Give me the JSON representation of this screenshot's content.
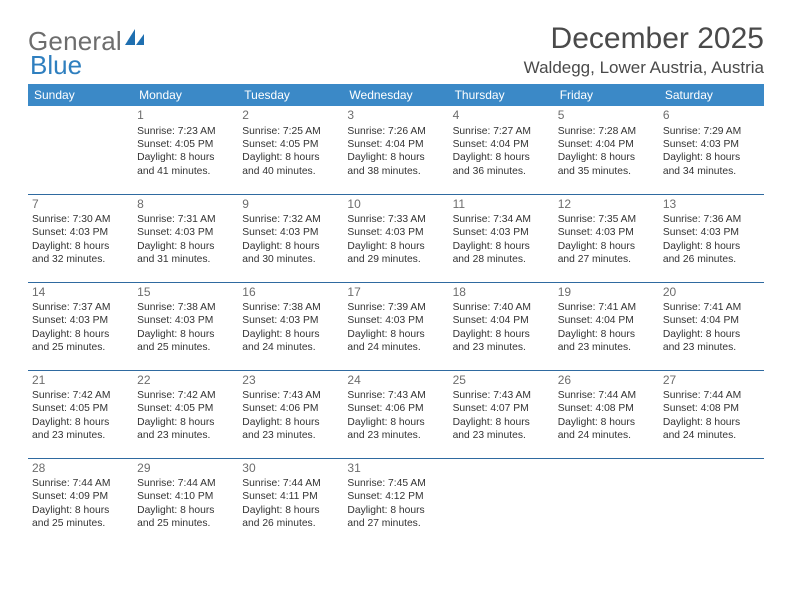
{
  "logo": {
    "word1": "General",
    "word2": "Blue"
  },
  "title": "December 2025",
  "location": "Waldegg, Lower Austria, Austria",
  "colors": {
    "header_bg": "#3b89c7",
    "header_text": "#ffffff",
    "row_border": "#2f6aa0",
    "text": "#333333",
    "muted": "#6d6d6d",
    "logo_gray": "#6d6d6d",
    "logo_blue": "#2f7fbf",
    "page_bg": "#ffffff"
  },
  "day_headers": [
    "Sunday",
    "Monday",
    "Tuesday",
    "Wednesday",
    "Thursday",
    "Friday",
    "Saturday"
  ],
  "weeks": [
    [
      null,
      {
        "n": "1",
        "sr": "Sunrise: 7:23 AM",
        "ss": "Sunset: 4:05 PM",
        "dl": "Daylight: 8 hours and 41 minutes."
      },
      {
        "n": "2",
        "sr": "Sunrise: 7:25 AM",
        "ss": "Sunset: 4:05 PM",
        "dl": "Daylight: 8 hours and 40 minutes."
      },
      {
        "n": "3",
        "sr": "Sunrise: 7:26 AM",
        "ss": "Sunset: 4:04 PM",
        "dl": "Daylight: 8 hours and 38 minutes."
      },
      {
        "n": "4",
        "sr": "Sunrise: 7:27 AM",
        "ss": "Sunset: 4:04 PM",
        "dl": "Daylight: 8 hours and 36 minutes."
      },
      {
        "n": "5",
        "sr": "Sunrise: 7:28 AM",
        "ss": "Sunset: 4:04 PM",
        "dl": "Daylight: 8 hours and 35 minutes."
      },
      {
        "n": "6",
        "sr": "Sunrise: 7:29 AM",
        "ss": "Sunset: 4:03 PM",
        "dl": "Daylight: 8 hours and 34 minutes."
      }
    ],
    [
      {
        "n": "7",
        "sr": "Sunrise: 7:30 AM",
        "ss": "Sunset: 4:03 PM",
        "dl": "Daylight: 8 hours and 32 minutes."
      },
      {
        "n": "8",
        "sr": "Sunrise: 7:31 AM",
        "ss": "Sunset: 4:03 PM",
        "dl": "Daylight: 8 hours and 31 minutes."
      },
      {
        "n": "9",
        "sr": "Sunrise: 7:32 AM",
        "ss": "Sunset: 4:03 PM",
        "dl": "Daylight: 8 hours and 30 minutes."
      },
      {
        "n": "10",
        "sr": "Sunrise: 7:33 AM",
        "ss": "Sunset: 4:03 PM",
        "dl": "Daylight: 8 hours and 29 minutes."
      },
      {
        "n": "11",
        "sr": "Sunrise: 7:34 AM",
        "ss": "Sunset: 4:03 PM",
        "dl": "Daylight: 8 hours and 28 minutes."
      },
      {
        "n": "12",
        "sr": "Sunrise: 7:35 AM",
        "ss": "Sunset: 4:03 PM",
        "dl": "Daylight: 8 hours and 27 minutes."
      },
      {
        "n": "13",
        "sr": "Sunrise: 7:36 AM",
        "ss": "Sunset: 4:03 PM",
        "dl": "Daylight: 8 hours and 26 minutes."
      }
    ],
    [
      {
        "n": "14",
        "sr": "Sunrise: 7:37 AM",
        "ss": "Sunset: 4:03 PM",
        "dl": "Daylight: 8 hours and 25 minutes."
      },
      {
        "n": "15",
        "sr": "Sunrise: 7:38 AM",
        "ss": "Sunset: 4:03 PM",
        "dl": "Daylight: 8 hours and 25 minutes."
      },
      {
        "n": "16",
        "sr": "Sunrise: 7:38 AM",
        "ss": "Sunset: 4:03 PM",
        "dl": "Daylight: 8 hours and 24 minutes."
      },
      {
        "n": "17",
        "sr": "Sunrise: 7:39 AM",
        "ss": "Sunset: 4:03 PM",
        "dl": "Daylight: 8 hours and 24 minutes."
      },
      {
        "n": "18",
        "sr": "Sunrise: 7:40 AM",
        "ss": "Sunset: 4:04 PM",
        "dl": "Daylight: 8 hours and 23 minutes."
      },
      {
        "n": "19",
        "sr": "Sunrise: 7:41 AM",
        "ss": "Sunset: 4:04 PM",
        "dl": "Daylight: 8 hours and 23 minutes."
      },
      {
        "n": "20",
        "sr": "Sunrise: 7:41 AM",
        "ss": "Sunset: 4:04 PM",
        "dl": "Daylight: 8 hours and 23 minutes."
      }
    ],
    [
      {
        "n": "21",
        "sr": "Sunrise: 7:42 AM",
        "ss": "Sunset: 4:05 PM",
        "dl": "Daylight: 8 hours and 23 minutes."
      },
      {
        "n": "22",
        "sr": "Sunrise: 7:42 AM",
        "ss": "Sunset: 4:05 PM",
        "dl": "Daylight: 8 hours and 23 minutes."
      },
      {
        "n": "23",
        "sr": "Sunrise: 7:43 AM",
        "ss": "Sunset: 4:06 PM",
        "dl": "Daylight: 8 hours and 23 minutes."
      },
      {
        "n": "24",
        "sr": "Sunrise: 7:43 AM",
        "ss": "Sunset: 4:06 PM",
        "dl": "Daylight: 8 hours and 23 minutes."
      },
      {
        "n": "25",
        "sr": "Sunrise: 7:43 AM",
        "ss": "Sunset: 4:07 PM",
        "dl": "Daylight: 8 hours and 23 minutes."
      },
      {
        "n": "26",
        "sr": "Sunrise: 7:44 AM",
        "ss": "Sunset: 4:08 PM",
        "dl": "Daylight: 8 hours and 24 minutes."
      },
      {
        "n": "27",
        "sr": "Sunrise: 7:44 AM",
        "ss": "Sunset: 4:08 PM",
        "dl": "Daylight: 8 hours and 24 minutes."
      }
    ],
    [
      {
        "n": "28",
        "sr": "Sunrise: 7:44 AM",
        "ss": "Sunset: 4:09 PM",
        "dl": "Daylight: 8 hours and 25 minutes."
      },
      {
        "n": "29",
        "sr": "Sunrise: 7:44 AM",
        "ss": "Sunset: 4:10 PM",
        "dl": "Daylight: 8 hours and 25 minutes."
      },
      {
        "n": "30",
        "sr": "Sunrise: 7:44 AM",
        "ss": "Sunset: 4:11 PM",
        "dl": "Daylight: 8 hours and 26 minutes."
      },
      {
        "n": "31",
        "sr": "Sunrise: 7:45 AM",
        "ss": "Sunset: 4:12 PM",
        "dl": "Daylight: 8 hours and 27 minutes."
      },
      null,
      null,
      null
    ]
  ]
}
